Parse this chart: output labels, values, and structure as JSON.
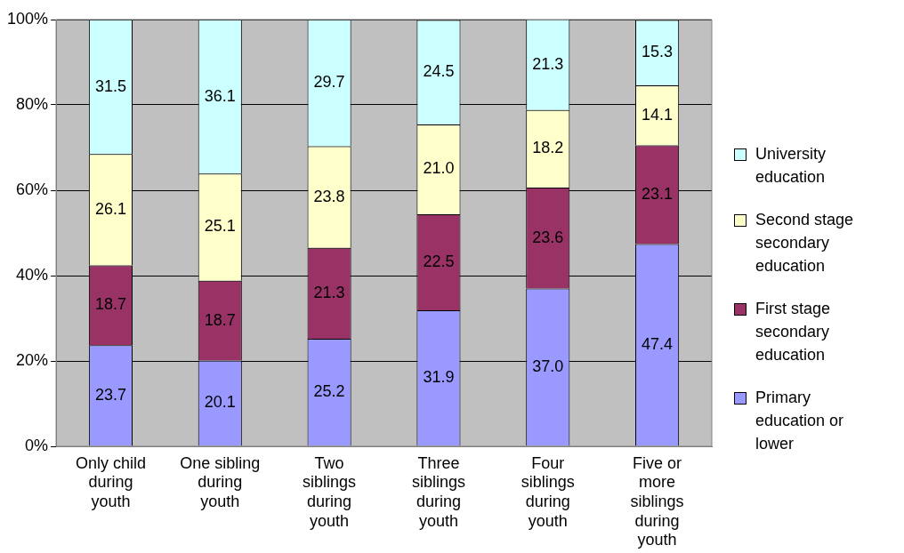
{
  "chart_data": {
    "type": "bar",
    "stacked": true,
    "categories": [
      "Only child during youth",
      "One sibling during youth",
      "Two siblings during youth",
      "Three siblings during youth",
      "Four siblings during youth",
      "Five or more siblings during youth"
    ],
    "series": [
      {
        "name": "Primary education or lower",
        "color": "#9999ff",
        "values": [
          23.7,
          20.1,
          25.2,
          31.9,
          37.0,
          47.4
        ],
        "value_labels": [
          "23.7",
          "20.1",
          "25.2",
          "31.9",
          "37.0",
          "47.4"
        ]
      },
      {
        "name": "First stage secondary education",
        "color": "#993366",
        "values": [
          18.7,
          18.7,
          21.3,
          22.5,
          23.6,
          23.1
        ],
        "value_labels": [
          "18.7",
          "18.7",
          "21.3",
          "22.5",
          "23.6",
          "23.1"
        ]
      },
      {
        "name": "Second stage secondary education",
        "color": "#ffffcc",
        "values": [
          26.1,
          25.1,
          23.8,
          21.0,
          18.2,
          14.1
        ],
        "value_labels": [
          "26.1",
          "25.1",
          "23.8",
          "21.0",
          "18.2",
          "14.1"
        ]
      },
      {
        "name": "University education",
        "color": "#ccffff",
        "values": [
          31.5,
          36.1,
          29.7,
          24.5,
          21.3,
          15.3
        ],
        "value_labels": [
          "31.5",
          "36.1",
          "29.7",
          "24.5",
          "21.3",
          "15.3"
        ]
      }
    ],
    "ylim": [
      0,
      100
    ],
    "yticks": [
      {
        "value": 0,
        "label": "0%"
      },
      {
        "value": 20,
        "label": "20%"
      },
      {
        "value": 40,
        "label": "40%"
      },
      {
        "value": 60,
        "label": "60%"
      },
      {
        "value": 80,
        "label": "80%"
      },
      {
        "value": 100,
        "label": "100%"
      }
    ],
    "grid": "y",
    "legend": "right"
  }
}
